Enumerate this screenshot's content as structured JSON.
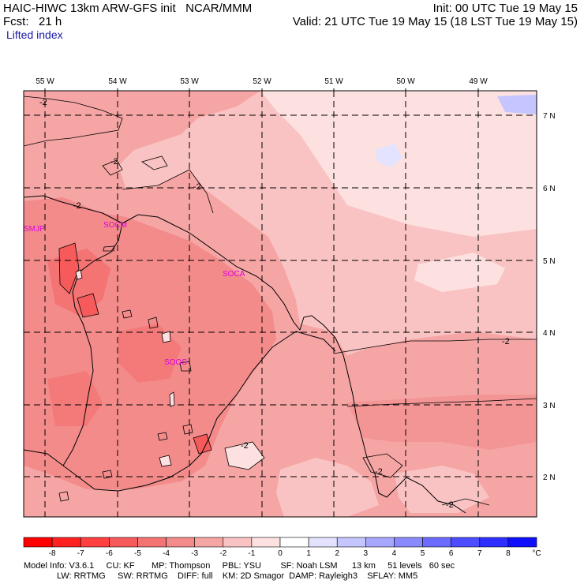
{
  "header": {
    "line1_left": "HAIC-HIWC 13km ARW-GFS init   NCAR/MMM",
    "line1_right": "Init: 00 UTC Tue 19 May 15",
    "line2_left": "Fcst:   21 h",
    "line2_right": "Valid: 21 UTC Tue 19 May 15 (18 LST Tue 19 May 15)",
    "field_name": "Lifted index"
  },
  "map": {
    "lon_labels": [
      "55 W",
      "54 W",
      "53 W",
      "52 W",
      "51 W",
      "50 W",
      "49 W"
    ],
    "lat_labels": [
      "7 N",
      "6 N",
      "5 N",
      "4 N",
      "3 N",
      "2 N"
    ],
    "stations": [
      "SMJP",
      "SOCM",
      "SOCA",
      "SOOS"
    ],
    "contour_labels": [
      "-2",
      "-2",
      "-2",
      "-2",
      "-2",
      "-2",
      "-2",
      "-2",
      "-2"
    ]
  },
  "colorbar": {
    "ticks": [
      "-8",
      "-7",
      "-6",
      "-5",
      "-4",
      "-3",
      "-2",
      "-1",
      "0",
      "1",
      "2",
      "3",
      "4",
      "5",
      "6",
      "7",
      "8"
    ],
    "unit": "°C",
    "colors": [
      "#ff0000",
      "#ff2020",
      "#ff4040",
      "#f75a5a",
      "#f47373",
      "#f38b8b",
      "#f6a5a5",
      "#fac3c3",
      "#fde1e1",
      "#ffffff",
      "#e3e3ff",
      "#c5c5ff",
      "#a7a7ff",
      "#8a8aff",
      "#6b6bff",
      "#4d4dff",
      "#2e2eff",
      "#1010ff"
    ]
  },
  "footer": {
    "line1": "Model Info: V3.6.1     CU: KF       MP: Thompson     PBL: YSU        SF: Noah LSM      13 km     51 levels   60 sec",
    "line2": "LW: RRTMG     SW: RRTMG    DIFF: full    KM: 2D Smagor  DAMP: Rayleigh3    SFLAY: MM5"
  }
}
